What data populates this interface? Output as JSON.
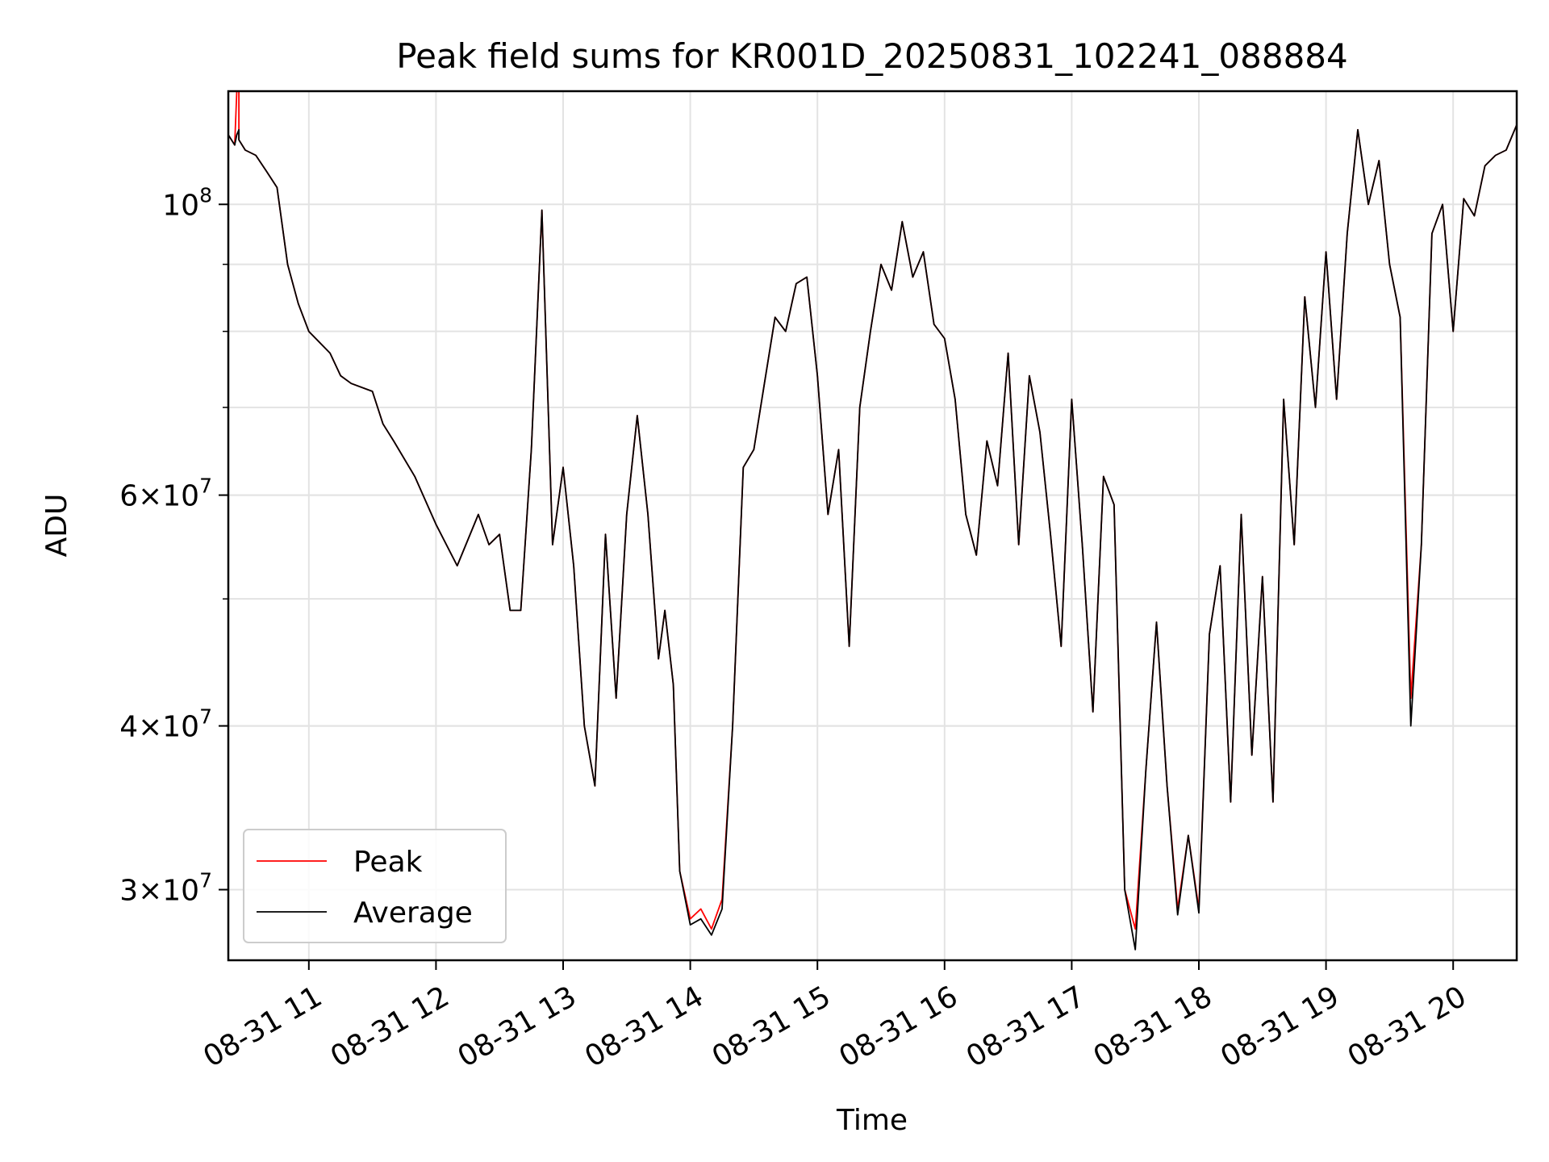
{
  "chart_data": {
    "type": "line",
    "title": "Peak field sums for KR001D_20250831_102241_088884",
    "xlabel": "Time",
    "ylabel": "ADU",
    "yscale": "log",
    "xlim": [
      "2025-08-31 10:22",
      "2025-08-31 20:30"
    ],
    "ylim": [
      26500000,
      122000000
    ],
    "grid": true,
    "legend_position": "lower-left",
    "x_ticks": [
      "08-31 11",
      "08-31 12",
      "08-31 13",
      "08-31 14",
      "08-31 15",
      "08-31 16",
      "08-31 17",
      "08-31 18",
      "08-31 19",
      "08-31 20"
    ],
    "y_ticks": [
      {
        "value": 100000000,
        "mantissa": "",
        "exponent": "8"
      },
      {
        "value": 60000000,
        "mantissa": "6",
        "exponent": "7"
      },
      {
        "value": 40000000,
        "mantissa": "4",
        "exponent": "7"
      },
      {
        "value": 30000000,
        "mantissa": "3",
        "exponent": "7"
      }
    ],
    "series": [
      {
        "name": "Peak",
        "color": "#ff0000",
        "x": [
          "10:22",
          "10:25",
          "10:26",
          "10:27",
          "10:27",
          "10:30",
          "10:35",
          "10:40",
          "10:45",
          "10:50",
          "10:55",
          "11:00",
          "11:10",
          "11:15",
          "11:20",
          "11:30",
          "11:35",
          "11:40",
          "11:50",
          "12:00",
          "12:10",
          "12:20",
          "12:25",
          "12:30",
          "12:35",
          "12:40",
          "12:45",
          "12:50",
          "12:55",
          "13:00",
          "13:05",
          "13:10",
          "13:15",
          "13:20",
          "13:25",
          "13:30",
          "13:35",
          "13:40",
          "13:45",
          "13:48",
          "13:52",
          "13:55",
          "14:00",
          "14:05",
          "14:10",
          "14:15",
          "14:20",
          "14:25",
          "14:30",
          "14:35",
          "14:40",
          "14:45",
          "14:50",
          "14:55",
          "15:00",
          "15:05",
          "15:10",
          "15:15",
          "15:20",
          "15:25",
          "15:30",
          "15:35",
          "15:40",
          "15:45",
          "15:50",
          "15:55",
          "16:00",
          "16:05",
          "16:10",
          "16:15",
          "16:20",
          "16:25",
          "16:30",
          "16:35",
          "16:40",
          "16:45",
          "16:50",
          "16:55",
          "17:00",
          "17:05",
          "17:10",
          "17:15",
          "17:20",
          "17:25",
          "17:30",
          "17:35",
          "17:40",
          "17:45",
          "17:50",
          "17:55",
          "18:00",
          "18:05",
          "18:10",
          "18:15",
          "18:20",
          "18:25",
          "18:30",
          "18:35",
          "18:40",
          "18:45",
          "18:50",
          "18:55",
          "19:00",
          "19:05",
          "19:10",
          "19:15",
          "19:20",
          "19:25",
          "19:30",
          "19:35",
          "19:40",
          "19:45",
          "19:50",
          "19:55",
          "20:00",
          "20:05",
          "20:10",
          "20:15",
          "20:20",
          "20:25",
          "20:30"
        ],
        "y": [
          113000000,
          111000000,
          122000000,
          122000000,
          112000000,
          110000000,
          109000000,
          106000000,
          103000000,
          90000000,
          84000000,
          80000000,
          77000000,
          74000000,
          73000000,
          72000000,
          68000000,
          66000000,
          62000000,
          57000000,
          53000000,
          58000000,
          55000000,
          56000000,
          49000000,
          49000000,
          65000000,
          99000000,
          55000000,
          63000000,
          53000000,
          40000000,
          36000000,
          56000000,
          42000000,
          58000000,
          69000000,
          58000000,
          45000000,
          49000000,
          43000000,
          31000000,
          28500000,
          29000000,
          28000000,
          29500000,
          40000000,
          63000000,
          65000000,
          73000000,
          82000000,
          80000000,
          87000000,
          88000000,
          74000000,
          58000000,
          65000000,
          46000000,
          70000000,
          80000000,
          90000000,
          86000000,
          97000000,
          88000000,
          92000000,
          81000000,
          79000000,
          71000000,
          58000000,
          54000000,
          66000000,
          61000000,
          77000000,
          55000000,
          74000000,
          67000000,
          56000000,
          46000000,
          71000000,
          55000000,
          41000000,
          62000000,
          59000000,
          30000000,
          28000000,
          37000000,
          48000000,
          36000000,
          29000000,
          33000000,
          29000000,
          47000000,
          53000000,
          35000000,
          58000000,
          38000000,
          52000000,
          35000000,
          71000000,
          55000000,
          85000000,
          70000000,
          92000000,
          71000000,
          95000000,
          114000000,
          100000000,
          108000000,
          90000000,
          82000000,
          42000000,
          55000000,
          95000000,
          100000000,
          80000000,
          101000000,
          98000000,
          107000000,
          109000000,
          110000000,
          115000000
        ]
      },
      {
        "name": "Average",
        "color": "#000000",
        "x": [
          "10:22",
          "10:25",
          "10:26",
          "10:27",
          "10:27",
          "10:30",
          "10:35",
          "10:40",
          "10:45",
          "10:50",
          "10:55",
          "11:00",
          "11:10",
          "11:15",
          "11:20",
          "11:30",
          "11:35",
          "11:40",
          "11:50",
          "12:00",
          "12:10",
          "12:20",
          "12:25",
          "12:30",
          "12:35",
          "12:40",
          "12:45",
          "12:50",
          "12:55",
          "13:00",
          "13:05",
          "13:10",
          "13:15",
          "13:20",
          "13:25",
          "13:30",
          "13:35",
          "13:40",
          "13:45",
          "13:48",
          "13:52",
          "13:55",
          "14:00",
          "14:05",
          "14:10",
          "14:15",
          "14:20",
          "14:25",
          "14:30",
          "14:35",
          "14:40",
          "14:45",
          "14:50",
          "14:55",
          "15:00",
          "15:05",
          "15:10",
          "15:15",
          "15:20",
          "15:25",
          "15:30",
          "15:35",
          "15:40",
          "15:45",
          "15:50",
          "15:55",
          "16:00",
          "16:05",
          "16:10",
          "16:15",
          "16:20",
          "16:25",
          "16:30",
          "16:35",
          "16:40",
          "16:45",
          "16:50",
          "16:55",
          "17:00",
          "17:05",
          "17:10",
          "17:15",
          "17:20",
          "17:25",
          "17:30",
          "17:35",
          "17:40",
          "17:45",
          "17:50",
          "17:55",
          "18:00",
          "18:05",
          "18:10",
          "18:15",
          "18:20",
          "18:25",
          "18:30",
          "18:35",
          "18:40",
          "18:45",
          "18:50",
          "18:55",
          "19:00",
          "19:05",
          "19:10",
          "19:15",
          "19:20",
          "19:25",
          "19:30",
          "19:35",
          "19:40",
          "19:45",
          "19:50",
          "19:55",
          "20:00",
          "20:05",
          "20:10",
          "20:15",
          "20:20",
          "20:25",
          "20:30"
        ],
        "y": [
          113000000,
          111000000,
          113000000,
          114000000,
          112000000,
          110000000,
          109000000,
          106000000,
          103000000,
          90000000,
          84000000,
          80000000,
          77000000,
          74000000,
          73000000,
          72000000,
          68000000,
          66000000,
          62000000,
          57000000,
          53000000,
          58000000,
          55000000,
          56000000,
          49000000,
          49000000,
          65000000,
          99000000,
          55000000,
          63000000,
          53000000,
          40000000,
          36000000,
          56000000,
          42000000,
          58000000,
          69000000,
          58000000,
          45000000,
          49000000,
          43000000,
          31000000,
          28200000,
          28500000,
          27700000,
          29000000,
          40000000,
          63000000,
          65000000,
          73000000,
          82000000,
          80000000,
          87000000,
          88000000,
          74000000,
          58000000,
          65000000,
          46000000,
          70000000,
          80000000,
          90000000,
          86000000,
          97000000,
          88000000,
          92000000,
          81000000,
          79000000,
          71000000,
          58000000,
          54000000,
          66000000,
          61000000,
          77000000,
          55000000,
          74000000,
          67000000,
          56000000,
          46000000,
          71000000,
          55000000,
          41000000,
          62000000,
          59000000,
          30000000,
          27000000,
          37000000,
          48000000,
          36000000,
          28700000,
          33000000,
          28800000,
          47000000,
          53000000,
          35000000,
          58000000,
          38000000,
          52000000,
          35000000,
          71000000,
          55000000,
          85000000,
          70000000,
          92000000,
          71000000,
          95000000,
          114000000,
          100000000,
          108000000,
          90000000,
          82000000,
          40000000,
          55000000,
          95000000,
          100000000,
          80000000,
          101000000,
          98000000,
          107000000,
          109000000,
          110000000,
          115000000
        ]
      }
    ]
  }
}
